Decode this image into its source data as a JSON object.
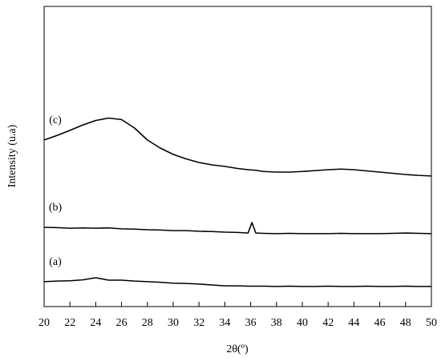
{
  "chart_data": {
    "type": "line",
    "x_label": "2θ(º)",
    "y_label": "Intensity (u.a)",
    "x": [
      20,
      21,
      22,
      23,
      24,
      25,
      26,
      27,
      28,
      29,
      30,
      31,
      32,
      33,
      34,
      35,
      35.8,
      36.1,
      36.4,
      37,
      38,
      39,
      40,
      41,
      42,
      43,
      44,
      45,
      46,
      47,
      48,
      49,
      50
    ],
    "series": [
      {
        "name": "(a)",
        "color": "#000000",
        "values": [
          8.3,
          8.5,
          8.6,
          8.9,
          9.6,
          8.8,
          8.8,
          8.5,
          8.3,
          8.1,
          7.8,
          7.7,
          7.5,
          7.2,
          6.9,
          6.9,
          6.8,
          6.8,
          6.8,
          6.8,
          6.7,
          6.8,
          6.7,
          6.7,
          6.8,
          6.7,
          6.7,
          6.8,
          6.7,
          6.7,
          6.8,
          6.7,
          6.7
        ]
      },
      {
        "name": "(b)",
        "color": "#000000",
        "values": [
          26.4,
          26.3,
          26.1,
          26.2,
          26.1,
          26.2,
          25.9,
          25.8,
          25.6,
          25.5,
          25.3,
          25.3,
          25.1,
          25,
          24.8,
          24.7,
          24.5,
          28,
          24.5,
          24.4,
          24.3,
          24.4,
          24.3,
          24.3,
          24.3,
          24.4,
          24.3,
          24.3,
          24.3,
          24.4,
          24.5,
          24.4,
          24.3
        ]
      },
      {
        "name": "(c)",
        "color": "#000000",
        "values": [
          55.5,
          57,
          58.7,
          60.5,
          62,
          62.8,
          62.3,
          59.5,
          55.5,
          52.8,
          50.7,
          49.2,
          48,
          47.2,
          46.7,
          46,
          45.6,
          45.5,
          45.4,
          45,
          44.8,
          44.8,
          45,
          45.3,
          45.6,
          45.8,
          45.6,
          45.2,
          44.8,
          44.4,
          44,
          43.7,
          43.5
        ]
      }
    ],
    "xlim": [
      20,
      50
    ],
    "xticks": [
      20,
      22,
      24,
      26,
      28,
      30,
      32,
      34,
      36,
      38,
      40,
      42,
      44,
      46,
      48,
      50
    ],
    "ylim": [
      0,
      100
    ]
  }
}
